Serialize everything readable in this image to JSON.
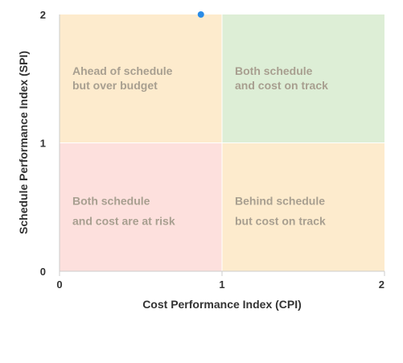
{
  "chart_data": {
    "type": "scatter",
    "xlabel": "Cost Performance Index (CPI)",
    "ylabel": "Schedule Performance Index (SPI)",
    "xlim": [
      0,
      2
    ],
    "ylim": [
      0,
      2
    ],
    "x_ticks": [
      "0",
      "1",
      "2"
    ],
    "y_ticks": [
      "0",
      "1",
      "2"
    ],
    "grid": false,
    "quadrants": [
      {
        "id": "top-left",
        "x_range": [
          0,
          1
        ],
        "y_range": [
          1,
          2
        ],
        "color": "#fdebcd",
        "lines": [
          "Ahead of schedule",
          "but over budget"
        ]
      },
      {
        "id": "top-right",
        "x_range": [
          1,
          2
        ],
        "y_range": [
          1,
          2
        ],
        "color": "#ddeed6",
        "lines": [
          "Both schedule",
          "and cost on track"
        ]
      },
      {
        "id": "bottom-left",
        "x_range": [
          0,
          1
        ],
        "y_range": [
          0,
          1
        ],
        "color": "#fde0dd",
        "lines": [
          "Both schedule",
          "and cost are at risk"
        ]
      },
      {
        "id": "bottom-right",
        "x_range": [
          1,
          2
        ],
        "y_range": [
          0,
          1
        ],
        "color": "#fdebcd",
        "lines": [
          "Behind schedule",
          "but cost on track"
        ]
      }
    ],
    "series": [
      {
        "points": [
          {
            "x": 0.87,
            "y": 2.0
          }
        ],
        "color": "#2b8ce6"
      }
    ]
  }
}
